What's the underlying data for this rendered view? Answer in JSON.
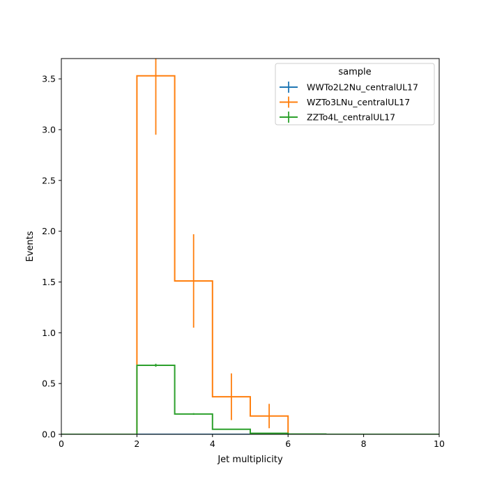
{
  "chart_data": {
    "type": "histogram",
    "title": "",
    "xlabel": "Jet multiplicity",
    "ylabel": "Events",
    "xlim": [
      0,
      10
    ],
    "ylim": [
      0,
      3.7
    ],
    "xticks": [
      "0",
      "2",
      "4",
      "6",
      "8",
      "10"
    ],
    "yticks": [
      "0.0",
      "0.5",
      "1.0",
      "1.5",
      "2.0",
      "2.5",
      "3.0",
      "3.5"
    ],
    "grid": false,
    "legend": {
      "title": "sample",
      "position": "top-right"
    },
    "bin_edges": [
      0,
      1,
      2,
      3,
      4,
      5,
      6,
      7,
      8,
      9,
      10
    ],
    "series": [
      {
        "name": "WWTo2L2Nu_centralUL17",
        "color": "#1f77b4",
        "values": [
          0,
          0,
          0,
          0,
          0,
          0,
          0,
          0,
          0,
          0
        ],
        "errors": [
          0,
          0,
          0,
          0,
          0,
          0,
          0,
          0,
          0,
          0
        ]
      },
      {
        "name": "WZTo3LNu_centralUL17",
        "color": "#ff7f0e",
        "values": [
          0,
          0,
          3.53,
          1.51,
          0.37,
          0.18,
          0,
          0,
          0,
          0
        ],
        "errors": [
          0,
          0,
          0.58,
          0.46,
          0.23,
          0.12,
          0,
          0,
          0,
          0
        ]
      },
      {
        "name": "ZZTo4L_centralUL17",
        "color": "#2ca02c",
        "values": [
          0,
          0,
          0.68,
          0.2,
          0.05,
          0.01,
          0.003,
          0,
          0,
          0
        ],
        "errors": [
          0,
          0,
          0.015,
          0.008,
          0.004,
          0.002,
          0.001,
          0,
          0,
          0
        ]
      }
    ]
  }
}
